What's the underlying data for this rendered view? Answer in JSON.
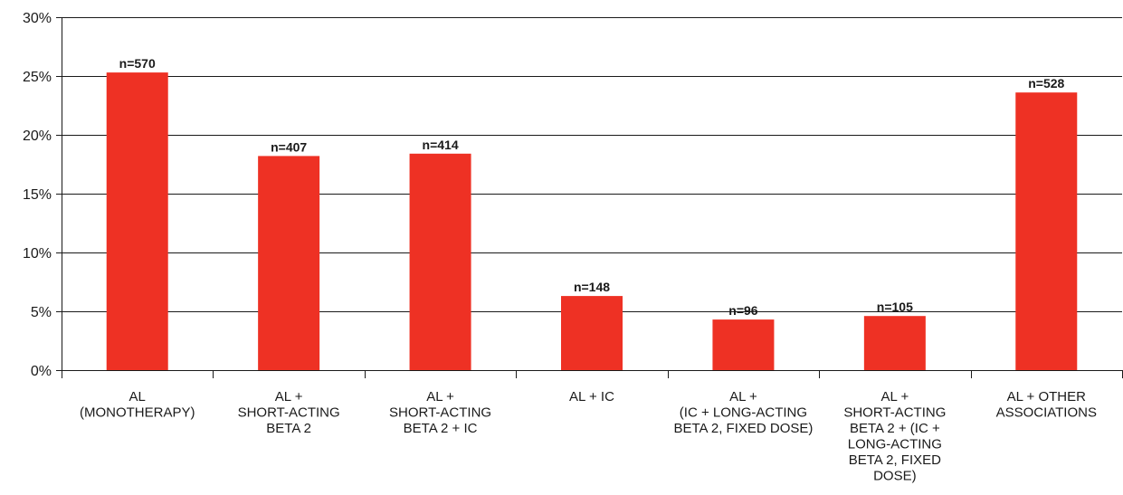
{
  "chart_data": {
    "type": "bar",
    "title": "",
    "xlabel": "",
    "ylabel": "",
    "ylim": [
      0,
      30
    ],
    "yticks": [
      "0%",
      "5%",
      "10%",
      "15%",
      "20%",
      "25%",
      "30%"
    ],
    "grid": true,
    "categories": [
      [
        "AL",
        "(MONOTHERAPY)"
      ],
      [
        "AL +",
        "SHORT-ACTING",
        "BETA 2"
      ],
      [
        "AL +",
        "SHORT-ACTING",
        "BETA 2 + IC"
      ],
      [
        "AL + IC"
      ],
      [
        "AL +",
        "(IC + LONG-ACTING",
        "BETA 2, FIXED DOSE)"
      ],
      [
        "AL +",
        "SHORT-ACTING",
        "BETA 2 + (IC +",
        "LONG-ACTING",
        "BETA 2, FIXED",
        "DOSE)"
      ],
      [
        "AL + OTHER",
        "ASSOCIATIONS"
      ]
    ],
    "values": [
      25.3,
      18.2,
      18.4,
      6.3,
      4.3,
      4.6,
      23.6
    ],
    "data_labels": [
      "n=570",
      "n=407",
      "n=414",
      "n=148",
      "n=96",
      "n=105",
      "n=528"
    ],
    "bar_color": "#ee3124",
    "grid_color": "#1a1a1a"
  }
}
